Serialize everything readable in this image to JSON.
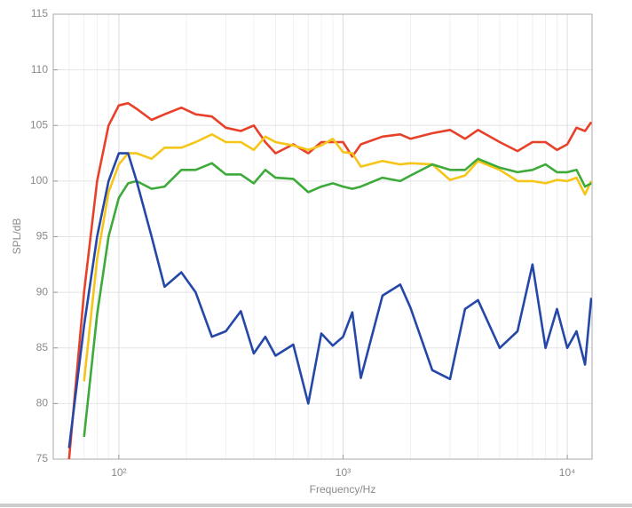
{
  "chart_data": {
    "type": "line",
    "xlabel": "Frequency/Hz",
    "ylabel": "SPL/dB",
    "x": [
      60,
      70,
      80,
      90,
      100,
      110,
      120,
      140,
      160,
      190,
      220,
      260,
      300,
      350,
      400,
      450,
      500,
      600,
      700,
      800,
      900,
      1000,
      1100,
      1200,
      1500,
      1800,
      2000,
      2500,
      3000,
      3500,
      4000,
      5000,
      6000,
      7000,
      8000,
      9000,
      10000,
      11000,
      12000,
      12800
    ],
    "series": [
      {
        "color": "#e8412a",
        "values": [
          75,
          90,
          100,
          105,
          106.8,
          107,
          106.5,
          105.5,
          106,
          106.6,
          106,
          105.8,
          104.8,
          104.5,
          105,
          103.5,
          102.5,
          103.3,
          102.5,
          103.5,
          103.5,
          103.5,
          102.2,
          103.3,
          104,
          104.2,
          103.8,
          104.3,
          104.6,
          103.8,
          104.6,
          103.5,
          102.7,
          103.5,
          103.5,
          102.8,
          103.3,
          104.8,
          104.5,
          105.3
        ]
      },
      {
        "color": "#f5c518",
        "values": [
          null,
          82,
          93,
          99,
          101.5,
          102.5,
          102.5,
          102,
          103,
          103,
          103.5,
          104.2,
          103.5,
          103.5,
          102.8,
          104,
          103.5,
          103.2,
          102.8,
          103.2,
          103.8,
          102.6,
          102.5,
          101.3,
          101.8,
          101.5,
          101.6,
          101.5,
          100.1,
          100.5,
          101.8,
          101,
          100,
          100,
          99.8,
          100.1,
          100,
          100.3,
          98.8,
          100
        ]
      },
      {
        "color": "#3daa3a",
        "values": [
          null,
          77,
          88,
          95,
          98.5,
          99.8,
          100,
          99.3,
          99.5,
          101,
          101,
          101.6,
          100.6,
          100.6,
          99.8,
          101,
          100.3,
          100.2,
          99,
          99.5,
          99.8,
          99.5,
          99.3,
          99.5,
          100.3,
          100,
          100.5,
          101.5,
          101,
          101,
          102,
          101.2,
          100.8,
          101,
          101.5,
          100.8,
          100.8,
          101,
          99.5,
          99.8
        ]
      },
      {
        "color": "#2447a8",
        "values": [
          76,
          87,
          95,
          100,
          102.5,
          102.5,
          100,
          95,
          90.5,
          91.8,
          90,
          86,
          86.5,
          88.3,
          84.5,
          86,
          84.3,
          85.3,
          80,
          86.3,
          85.2,
          86,
          88.2,
          82.3,
          89.7,
          90.7,
          88.6,
          83,
          82.2,
          88.5,
          89.3,
          85,
          86.5,
          92.5,
          85,
          88.5,
          85,
          86.5,
          83.5,
          89.5
        ]
      }
    ],
    "xlim": [
      51,
      12900
    ],
    "xscale": "log",
    "xticks": [
      {
        "value": 100,
        "label": "10²"
      },
      {
        "value": 1000,
        "label": "10³"
      },
      {
        "value": 10000,
        "label": "10⁴"
      }
    ],
    "ylim": [
      75,
      115
    ],
    "yticks": [
      75,
      80,
      85,
      90,
      95,
      100,
      105,
      110,
      115
    ],
    "grid": true,
    "minor_grid": true
  }
}
